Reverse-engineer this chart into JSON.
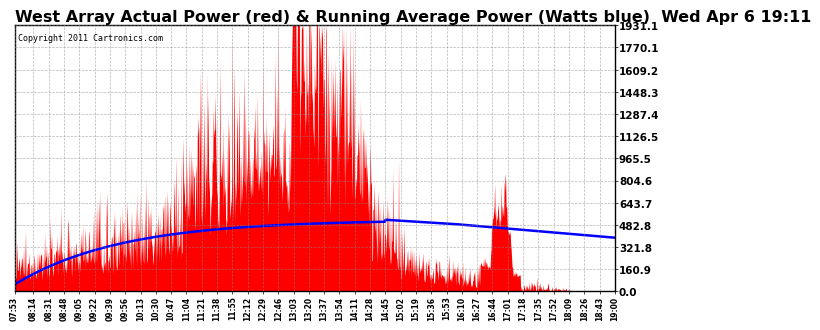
{
  "title": "West Array Actual Power (red) & Running Average Power (Watts blue)  Wed Apr 6 19:11",
  "copyright": "Copyright 2011 Cartronics.com",
  "yticks": [
    0.0,
    160.9,
    321.8,
    482.8,
    643.7,
    804.6,
    965.5,
    1126.5,
    1287.4,
    1448.3,
    1609.2,
    1770.1,
    1931.1
  ],
  "ymax": 1931.1,
  "ymin": 0.0,
  "bg_color": "#ffffff",
  "plot_bg_color": "#ffffff",
  "grid_color": "#888888",
  "bar_color": "#ff0000",
  "line_color": "#0000ff",
  "title_fontsize": 11.5,
  "xtick_fontsize": 5.5,
  "ytick_fontsize": 7.5,
  "xtick_labels": [
    "07:53",
    "08:14",
    "08:31",
    "08:48",
    "09:05",
    "09:22",
    "09:39",
    "09:56",
    "10:13",
    "10:30",
    "10:47",
    "11:04",
    "11:21",
    "11:38",
    "11:55",
    "12:12",
    "12:29",
    "12:46",
    "13:03",
    "13:20",
    "13:37",
    "13:54",
    "14:11",
    "14:28",
    "14:45",
    "15:02",
    "15:19",
    "15:36",
    "15:53",
    "16:10",
    "16:27",
    "16:44",
    "17:01",
    "17:18",
    "17:35",
    "17:52",
    "18:09",
    "18:26",
    "18:43",
    "19:00"
  ]
}
